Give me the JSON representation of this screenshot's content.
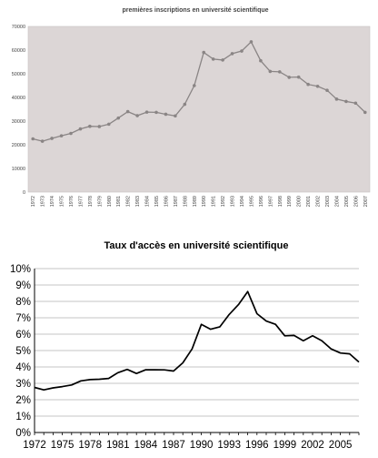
{
  "chart_data": [
    {
      "type": "line",
      "title": "premières inscriptions en université scientifique",
      "xlabel": "",
      "ylabel": "",
      "ylim": [
        0,
        70000
      ],
      "yticks": [
        "0",
        "10000",
        "20000",
        "30000",
        "40000",
        "50000",
        "60000",
        "70000"
      ],
      "grid": false,
      "markers": true,
      "background": "#dcd6d6",
      "line_color": "#8a8585",
      "x": [
        1972,
        1973,
        1974,
        1975,
        1976,
        1977,
        1978,
        1979,
        1980,
        1981,
        1982,
        1983,
        1984,
        1985,
        1986,
        1987,
        1988,
        1989,
        1990,
        1991,
        1992,
        1993,
        1994,
        1995,
        1996,
        1997,
        1998,
        1999,
        2000,
        2001,
        2002,
        2003,
        2004,
        2005,
        2006,
        2007
      ],
      "series": [
        {
          "values": [
            22500,
            21500,
            22700,
            23800,
            24800,
            26700,
            27800,
            27700,
            28700,
            31300,
            34000,
            32300,
            33800,
            33700,
            32900,
            32200,
            37100,
            45000,
            59000,
            56200,
            55800,
            58500,
            59600,
            63500,
            55500,
            51000,
            50800,
            48500,
            48600,
            45500,
            44700,
            43000,
            39300,
            38300,
            37600,
            33700
          ]
        }
      ]
    },
    {
      "type": "line",
      "title": "Taux d'accès en université scientifique",
      "xlabel": "",
      "ylabel": "",
      "ylim": [
        0,
        10
      ],
      "yticks": [
        "0%",
        "1%",
        "2%",
        "3%",
        "4%",
        "5%",
        "6%",
        "7%",
        "8%",
        "9%",
        "10%"
      ],
      "xticks": [
        "1972",
        "1975",
        "1978",
        "1981",
        "1984",
        "1987",
        "1990",
        "1993",
        "1996",
        "1999",
        "2002",
        "2005"
      ],
      "grid": true,
      "markers": false,
      "line_color": "#000000",
      "x": [
        1972,
        1973,
        1974,
        1975,
        1976,
        1977,
        1978,
        1979,
        1980,
        1981,
        1982,
        1983,
        1984,
        1985,
        1986,
        1987,
        1988,
        1989,
        1990,
        1991,
        1992,
        1993,
        1994,
        1995,
        1996,
        1997,
        1998,
        1999,
        2000,
        2001,
        2002,
        2003,
        2004,
        2005,
        2006,
        2007
      ],
      "series": [
        {
          "values": [
            2.75,
            2.6,
            2.72,
            2.8,
            2.9,
            3.15,
            3.23,
            3.25,
            3.3,
            3.65,
            3.85,
            3.6,
            3.83,
            3.83,
            3.82,
            3.75,
            4.25,
            5.1,
            6.6,
            6.3,
            6.45,
            7.2,
            7.8,
            8.6,
            7.25,
            6.8,
            6.6,
            5.9,
            5.92,
            5.6,
            5.9,
            5.6,
            5.1,
            4.85,
            4.8,
            4.3
          ]
        }
      ]
    }
  ]
}
